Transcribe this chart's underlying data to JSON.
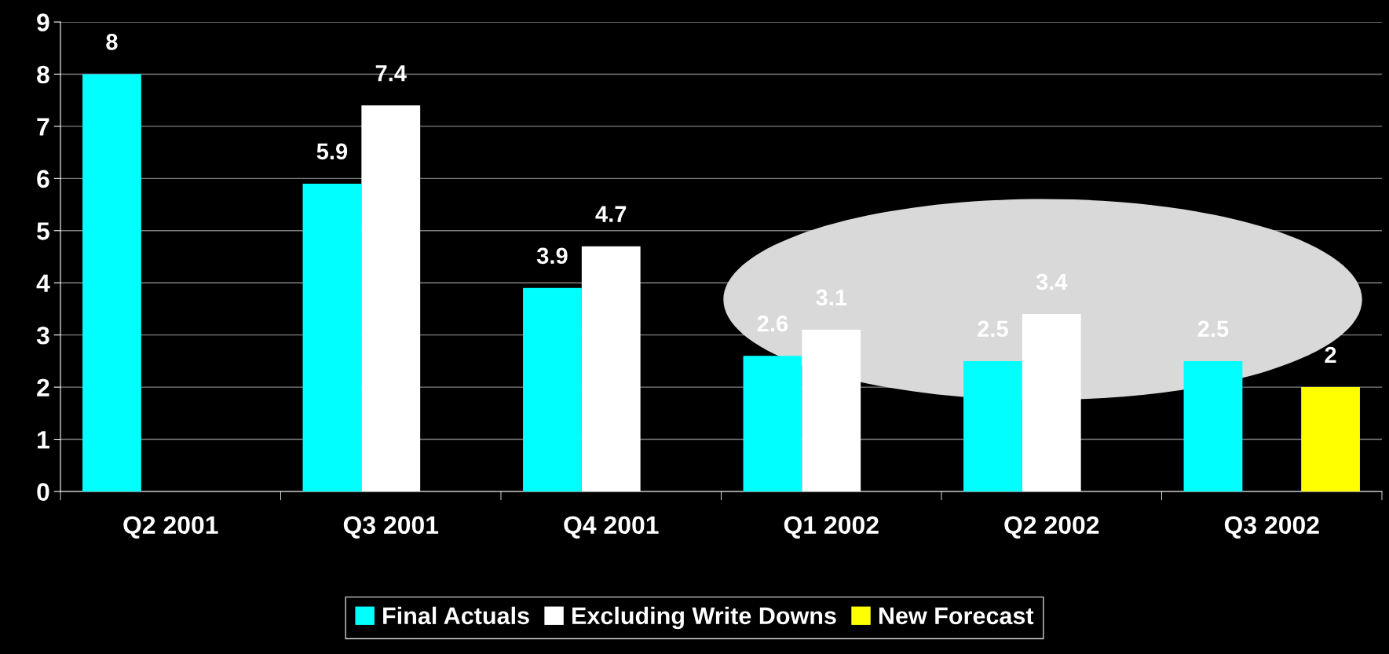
{
  "chart_data": {
    "type": "bar",
    "categories": [
      "Q2 2001",
      "Q3 2001",
      "Q4 2001",
      "Q1 2002",
      "Q2 2002",
      "Q3 2002"
    ],
    "series": [
      {
        "name": "Final Actuals",
        "color": "#00ffff",
        "values": [
          8,
          5.9,
          3.9,
          2.6,
          2.5,
          2.5
        ]
      },
      {
        "name": "Excluding Write Downs",
        "color": "#ffffff",
        "values": [
          null,
          7.4,
          4.7,
          3.1,
          3.4,
          null
        ]
      },
      {
        "name": "New Forecast",
        "color": "#ffff00",
        "values": [
          null,
          null,
          null,
          null,
          null,
          2
        ]
      }
    ],
    "ylim": [
      0,
      9
    ],
    "yticks": [
      0,
      1,
      2,
      3,
      4,
      5,
      6,
      7,
      8,
      9
    ],
    "grid": "y",
    "legend": "bottom",
    "data_labels": true
  }
}
